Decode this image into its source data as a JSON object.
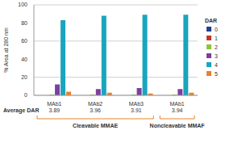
{
  "chart_data": {
    "type": "bar",
    "ylabel": "% Area at 280 nm",
    "categories": [
      "MAb1",
      "MAb2",
      "MAb3",
      "MAb1"
    ],
    "series": [
      {
        "name": "0",
        "color": "#1f3f8f",
        "values": [
          0,
          0,
          0,
          0
        ]
      },
      {
        "name": "1",
        "color": "#c0392b",
        "values": [
          0,
          0,
          0,
          0
        ]
      },
      {
        "name": "2",
        "color": "#8cc43c",
        "values": [
          1,
          1,
          1,
          1
        ]
      },
      {
        "name": "3",
        "color": "#7b3fa0",
        "values": [
          12,
          7,
          8,
          7
        ]
      },
      {
        "name": "4",
        "color": "#19a5bd",
        "values": [
          83,
          88,
          89,
          89
        ]
      },
      {
        "name": "5",
        "color": "#e8832a",
        "values": [
          4,
          3,
          2,
          3
        ]
      }
    ],
    "ylim": [
      0,
      100
    ],
    "yticks": [
      0,
      20,
      40,
      60,
      80,
      100
    ],
    "grid": true,
    "legend": "right",
    "legend_title": "DAR",
    "average_dar_label": "Average DAR",
    "average_dar": [
      3.89,
      3.96,
      3.91,
      3.94
    ],
    "groups": [
      {
        "label": "Cleavable MMAE",
        "count": 3
      },
      {
        "label": "Noncleavable MMAF",
        "count": 1
      }
    ]
  }
}
